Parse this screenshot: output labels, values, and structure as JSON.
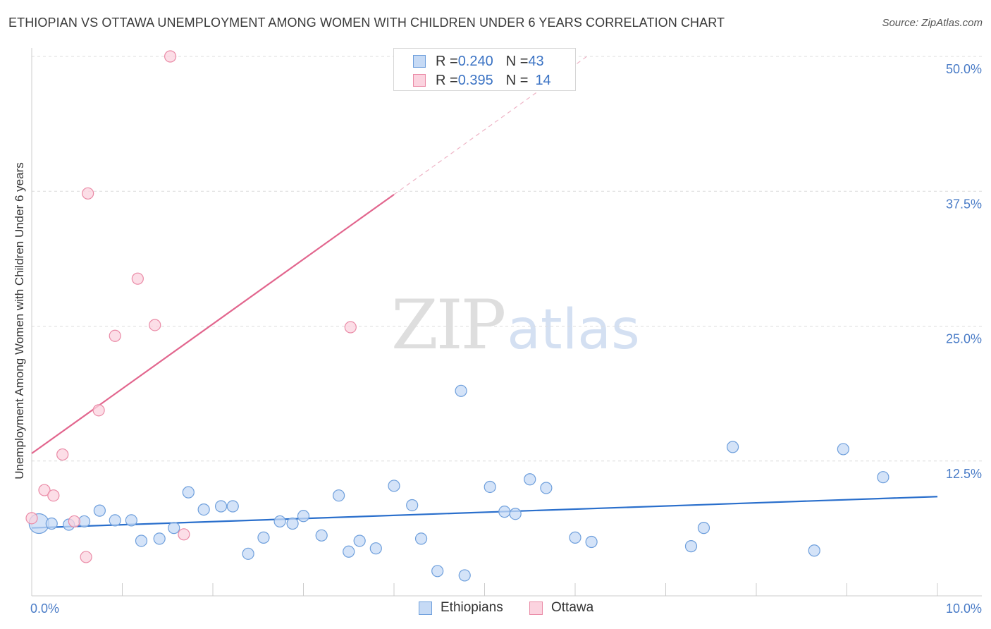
{
  "header": {
    "title": "ETHIOPIAN VS OTTAWA UNEMPLOYMENT AMONG WOMEN WITH CHILDREN UNDER 6 YEARS CORRELATION CHART",
    "source": "Source: ZipAtlas.com"
  },
  "watermark": {
    "zip": "ZIP",
    "atlas": "atlas"
  },
  "legend": {
    "ethiopians": {
      "r_label": "R = ",
      "r_value": "0.240",
      "n_label": "N = ",
      "n_value": "43"
    },
    "ottawa": {
      "r_label": "R = ",
      "r_value": "0.395",
      "n_label": "N = ",
      "n_value": "14"
    }
  },
  "colors": {
    "blue_fill": "#c6daf5",
    "blue_stroke": "#6e9fdc",
    "blue_line": "#2a6fcc",
    "pink_fill": "#fbd3df",
    "pink_stroke": "#ea8aa6",
    "pink_line": "#e2668e",
    "grid": "#dcdcdc",
    "tick_text": "#4a7cc7"
  },
  "chart_data": {
    "type": "scatter",
    "title": "ETHIOPIAN VS OTTAWA UNEMPLOYMENT AMONG WOMEN WITH CHILDREN UNDER 6 YEARS CORRELATION CHART",
    "xlabel": "",
    "ylabel": "Unemployment Among Women with Children Under 6 years",
    "xlim": [
      0,
      10
    ],
    "ylim": [
      0,
      50
    ],
    "x_tick_labels": [
      "0.0%",
      "10.0%"
    ],
    "y_tick_labels": [
      "12.5%",
      "25.0%",
      "37.5%",
      "50.0%"
    ],
    "y_ticks": [
      12.5,
      25,
      37.5,
      50
    ],
    "legend_position": "top-center",
    "series": [
      {
        "name": "Ethiopians",
        "color": "#6e9fdc",
        "points": [
          {
            "x": 0.08,
            "y": 6.7,
            "big": true
          },
          {
            "x": 0.22,
            "y": 6.7
          },
          {
            "x": 0.41,
            "y": 6.6
          },
          {
            "x": 0.58,
            "y": 6.9
          },
          {
            "x": 0.75,
            "y": 7.9
          },
          {
            "x": 0.92,
            "y": 7.0
          },
          {
            "x": 1.1,
            "y": 7.0
          },
          {
            "x": 1.21,
            "y": 5.1
          },
          {
            "x": 1.41,
            "y": 5.3
          },
          {
            "x": 1.57,
            "y": 6.3
          },
          {
            "x": 1.73,
            "y": 9.6
          },
          {
            "x": 1.9,
            "y": 8.0
          },
          {
            "x": 2.09,
            "y": 8.3
          },
          {
            "x": 2.22,
            "y": 8.3
          },
          {
            "x": 2.39,
            "y": 3.9
          },
          {
            "x": 2.56,
            "y": 5.4
          },
          {
            "x": 2.74,
            "y": 6.9
          },
          {
            "x": 2.88,
            "y": 6.7
          },
          {
            "x": 3.0,
            "y": 7.4
          },
          {
            "x": 3.2,
            "y": 5.6
          },
          {
            "x": 3.39,
            "y": 9.3
          },
          {
            "x": 3.5,
            "y": 4.1
          },
          {
            "x": 3.62,
            "y": 5.1
          },
          {
            "x": 3.8,
            "y": 4.4
          },
          {
            "x": 4.0,
            "y": 10.2
          },
          {
            "x": 4.2,
            "y": 8.4
          },
          {
            "x": 4.3,
            "y": 5.3
          },
          {
            "x": 4.48,
            "y": 2.3
          },
          {
            "x": 4.74,
            "y": 19.0
          },
          {
            "x": 4.78,
            "y": 1.9
          },
          {
            "x": 5.06,
            "y": 10.1
          },
          {
            "x": 5.22,
            "y": 7.8
          },
          {
            "x": 5.34,
            "y": 7.6
          },
          {
            "x": 5.5,
            "y": 10.8
          },
          {
            "x": 5.68,
            "y": 10.0
          },
          {
            "x": 6.0,
            "y": 5.4
          },
          {
            "x": 6.18,
            "y": 5.0
          },
          {
            "x": 7.28,
            "y": 4.6
          },
          {
            "x": 7.42,
            "y": 6.3
          },
          {
            "x": 7.74,
            "y": 13.8
          },
          {
            "x": 8.64,
            "y": 4.2
          },
          {
            "x": 8.96,
            "y": 13.6
          },
          {
            "x": 9.4,
            "y": 11.0
          }
        ],
        "trend": {
          "x": [
            0.0,
            10.0
          ],
          "y": [
            6.3,
            9.2
          ]
        }
      },
      {
        "name": "Ottawa",
        "color": "#ea8aa6",
        "points": [
          {
            "x": 0.0,
            "y": 7.2
          },
          {
            "x": 0.14,
            "y": 9.8
          },
          {
            "x": 0.24,
            "y": 9.3
          },
          {
            "x": 0.34,
            "y": 13.1
          },
          {
            "x": 0.47,
            "y": 6.9
          },
          {
            "x": 0.6,
            "y": 3.6
          },
          {
            "x": 0.62,
            "y": 37.3
          },
          {
            "x": 0.74,
            "y": 17.2
          },
          {
            "x": 0.92,
            "y": 24.1
          },
          {
            "x": 1.17,
            "y": 29.4
          },
          {
            "x": 1.36,
            "y": 25.1
          },
          {
            "x": 1.53,
            "y": 50.0
          },
          {
            "x": 1.68,
            "y": 5.7
          },
          {
            "x": 3.52,
            "y": 24.9
          }
        ],
        "trend": {
          "x": [
            0.0,
            4.0
          ],
          "y": [
            13.2,
            37.2
          ]
        },
        "trend_extension": {
          "x": [
            4.0,
            6.13
          ],
          "y": [
            37.2,
            50.0
          ]
        }
      }
    ]
  },
  "bottom_legend": {
    "ethiopians": "Ethiopians",
    "ottawa": "Ottawa"
  }
}
